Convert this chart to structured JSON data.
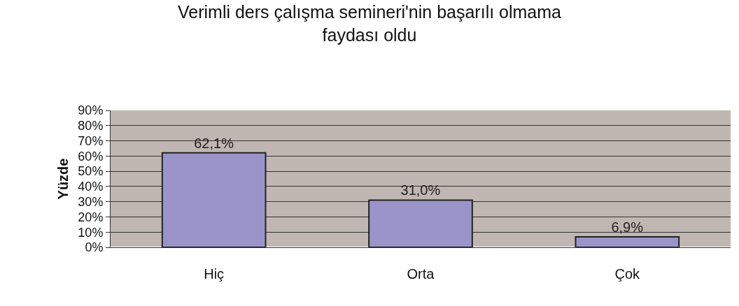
{
  "chart_data": {
    "type": "bar",
    "title": "Verimli ders çalışma semineri'nin başarılı olmama\nfaydası oldu",
    "ylabel": "Yüzde",
    "categories": [
      "Hiç",
      "Orta",
      "Çok"
    ],
    "values": [
      62.1,
      31.0,
      6.9
    ],
    "value_labels": [
      "62,1%",
      "31,0%",
      "6,9%"
    ],
    "color": "#9a94c8",
    "ylim": [
      0,
      90
    ],
    "yticks": [
      {
        "value": 0,
        "label": "0%"
      },
      {
        "value": 10,
        "label": "10%"
      },
      {
        "value": 20,
        "label": "20%"
      },
      {
        "value": 30,
        "label": "30%"
      },
      {
        "value": 40,
        "label": "40%"
      },
      {
        "value": 50,
        "label": "50%"
      },
      {
        "value": 60,
        "label": "60%"
      },
      {
        "value": 70,
        "label": "70%"
      },
      {
        "value": 80,
        "label": "80%"
      },
      {
        "value": 90,
        "label": "90%"
      }
    ],
    "grid": "y",
    "legend": false
  }
}
